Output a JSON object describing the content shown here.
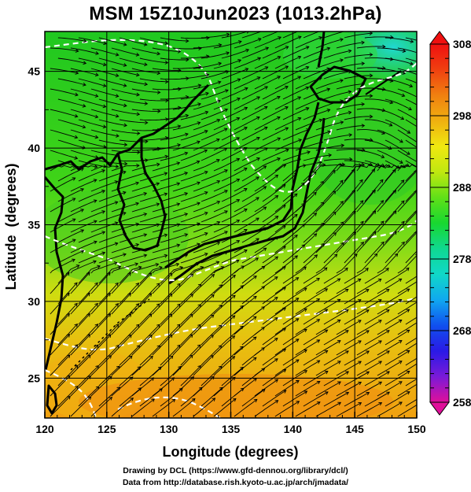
{
  "title": "MSM 15Z10Jun2023 (1013.2hPa)",
  "axes": {
    "xlabel": "Longitude (degrees)",
    "ylabel": "Latitude  (degrees)",
    "xlim": [
      120,
      150
    ],
    "ylim": [
      22.4,
      47.6
    ],
    "xticks": [
      "120",
      "125",
      "130",
      "135",
      "140",
      "145",
      "150"
    ],
    "yticks": [
      "25",
      "30",
      "35",
      "40",
      "45"
    ],
    "grid": true
  },
  "colorbar": {
    "range": [
      258,
      308
    ],
    "tick_labels": [
      "308",
      "298",
      "288",
      "278",
      "268",
      "258"
    ],
    "colors": [
      "#e0109a",
      "#7a1ad8",
      "#2a1ae6",
      "#1050ee",
      "#10a8f0",
      "#10d8c8",
      "#10d890",
      "#18d830",
      "#60e018",
      "#c0e810",
      "#f0e810",
      "#f0b010",
      "#f08010",
      "#f04010",
      "#f01010"
    ]
  },
  "field_colors": {
    "north": "#18c818",
    "mid": "#60d818",
    "south": "#d8d810",
    "far_south": "#f0a010",
    "northeast": "#20d8c0"
  },
  "credits": {
    "line1": "Drawing by DCL (https://www.gfd-dennou.org/library/dcl/)",
    "line2": "Data from http://database.rish.kyoto-u.ac.jp/arch/jmadata/"
  }
}
